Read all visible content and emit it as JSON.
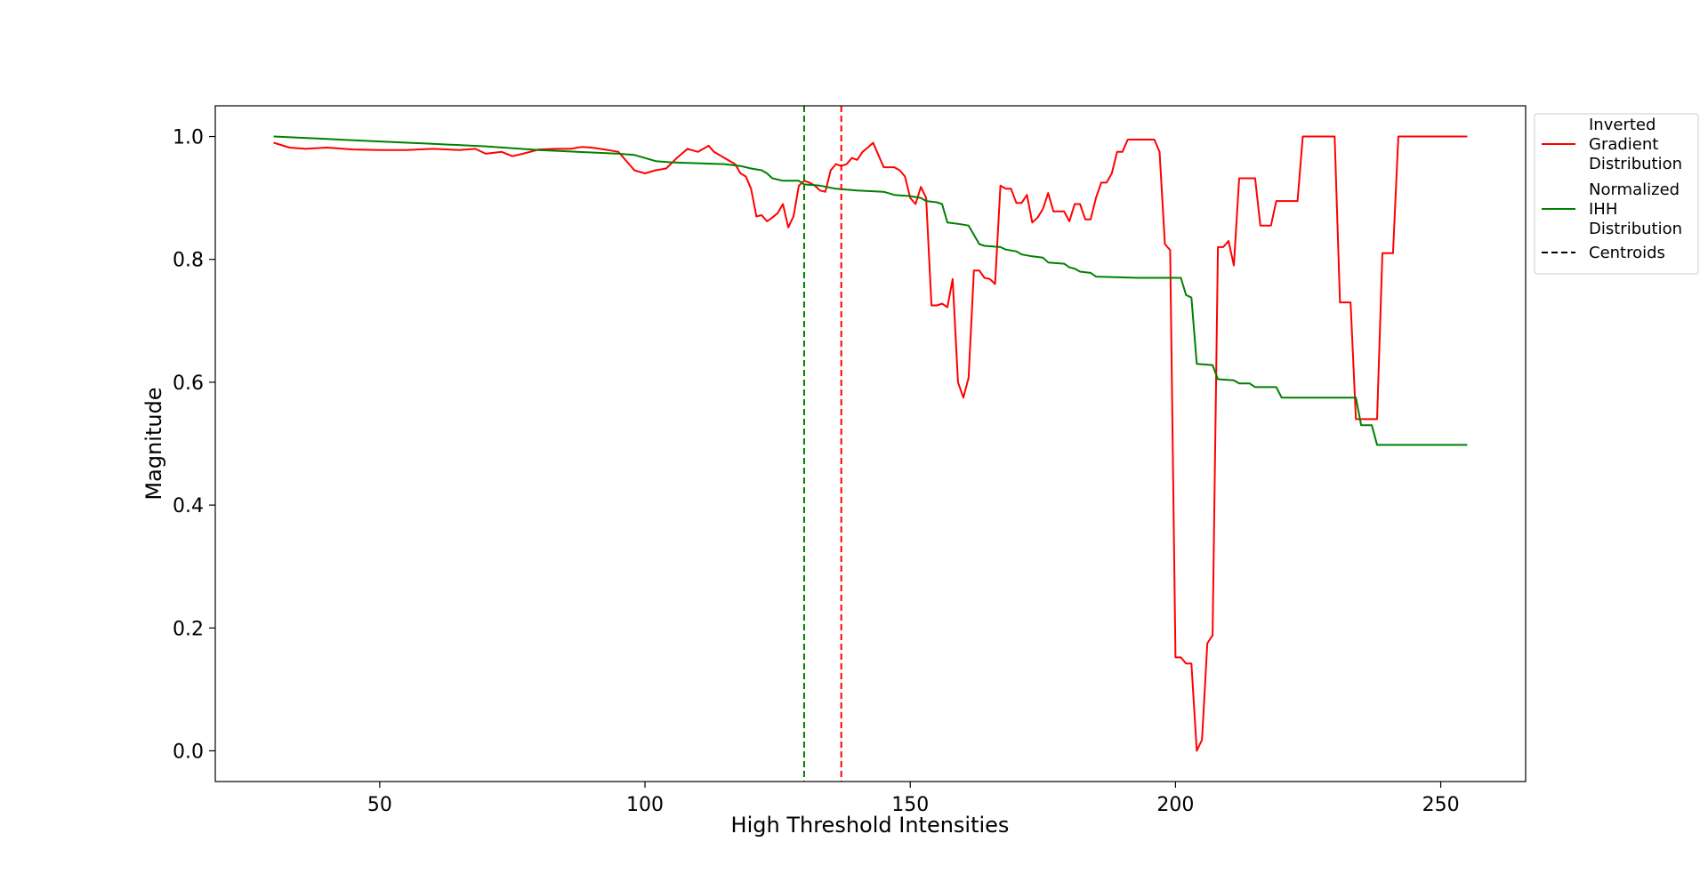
{
  "chart_data": {
    "type": "line",
    "title": "",
    "xlabel": "High Threshold Intensities",
    "ylabel": "Magnitude",
    "xlim": [
      19,
      266
    ],
    "ylim": [
      -0.05,
      1.05
    ],
    "x_ticks": [
      50,
      100,
      150,
      200,
      250
    ],
    "y_ticks": [
      0.0,
      0.2,
      0.4,
      0.6,
      0.8,
      1.0
    ],
    "x_tick_labels": [
      "50",
      "100",
      "150",
      "200",
      "250"
    ],
    "y_tick_labels": [
      "0.0",
      "0.2",
      "0.4",
      "0.6",
      "0.8",
      "1.0"
    ],
    "grid": false,
    "legend_position": "outside-top-right",
    "legend_entries": [
      {
        "lines": [
          "Inverted",
          "Gradient",
          "Distribution"
        ],
        "color": "#ff0000",
        "style": "solid"
      },
      {
        "lines": [
          "Normalized",
          "IHH",
          "Distribution"
        ],
        "color": "#008000",
        "style": "solid"
      },
      {
        "lines": [
          "Centroids"
        ],
        "color": "#000000",
        "style": "dashed"
      }
    ],
    "series": [
      {
        "name": "Inverted Gradient Distribution",
        "color": "#ff0000",
        "points": [
          [
            30,
            0.99
          ],
          [
            33,
            0.982
          ],
          [
            36,
            0.98
          ],
          [
            40,
            0.982
          ],
          [
            45,
            0.979
          ],
          [
            50,
            0.978
          ],
          [
            55,
            0.978
          ],
          [
            60,
            0.98
          ],
          [
            65,
            0.978
          ],
          [
            68,
            0.98
          ],
          [
            70,
            0.972
          ],
          [
            73,
            0.975
          ],
          [
            75,
            0.968
          ],
          [
            77,
            0.972
          ],
          [
            80,
            0.979
          ],
          [
            83,
            0.98
          ],
          [
            86,
            0.98
          ],
          [
            88,
            0.983
          ],
          [
            90,
            0.982
          ],
          [
            93,
            0.978
          ],
          [
            95,
            0.975
          ],
          [
            97,
            0.955
          ],
          [
            98,
            0.945
          ],
          [
            100,
            0.94
          ],
          [
            102,
            0.945
          ],
          [
            104,
            0.948
          ],
          [
            106,
            0.965
          ],
          [
            108,
            0.98
          ],
          [
            110,
            0.975
          ],
          [
            112,
            0.985
          ],
          [
            113,
            0.975
          ],
          [
            115,
            0.965
          ],
          [
            117,
            0.955
          ],
          [
            118,
            0.94
          ],
          [
            119,
            0.935
          ],
          [
            120,
            0.915
          ],
          [
            121,
            0.87
          ],
          [
            122,
            0.872
          ],
          [
            123,
            0.862
          ],
          [
            124,
            0.868
          ],
          [
            125,
            0.875
          ],
          [
            126,
            0.89
          ],
          [
            127,
            0.852
          ],
          [
            128,
            0.87
          ],
          [
            129,
            0.92
          ],
          [
            130,
            0.928
          ],
          [
            131,
            0.925
          ],
          [
            132,
            0.92
          ],
          [
            133,
            0.912
          ],
          [
            134,
            0.91
          ],
          [
            135,
            0.945
          ],
          [
            136,
            0.955
          ],
          [
            137,
            0.952
          ],
          [
            138,
            0.955
          ],
          [
            139,
            0.965
          ],
          [
            140,
            0.962
          ],
          [
            141,
            0.975
          ],
          [
            142,
            0.982
          ],
          [
            143,
            0.99
          ],
          [
            144,
            0.97
          ],
          [
            145,
            0.95
          ],
          [
            147,
            0.95
          ],
          [
            148,
            0.945
          ],
          [
            149,
            0.935
          ],
          [
            150,
            0.9
          ],
          [
            151,
            0.89
          ],
          [
            152,
            0.918
          ],
          [
            153,
            0.9
          ],
          [
            154,
            0.725
          ],
          [
            155,
            0.725
          ],
          [
            156,
            0.728
          ],
          [
            157,
            0.722
          ],
          [
            158,
            0.768
          ],
          [
            159,
            0.6
          ],
          [
            160,
            0.575
          ],
          [
            161,
            0.607
          ],
          [
            162,
            0.782
          ],
          [
            163,
            0.782
          ],
          [
            164,
            0.77
          ],
          [
            165,
            0.768
          ],
          [
            166,
            0.76
          ],
          [
            167,
            0.92
          ],
          [
            168,
            0.915
          ],
          [
            169,
            0.915
          ],
          [
            170,
            0.892
          ],
          [
            171,
            0.892
          ],
          [
            172,
            0.905
          ],
          [
            173,
            0.86
          ],
          [
            174,
            0.868
          ],
          [
            175,
            0.882
          ],
          [
            176,
            0.908
          ],
          [
            177,
            0.878
          ],
          [
            178,
            0.878
          ],
          [
            179,
            0.878
          ],
          [
            180,
            0.862
          ],
          [
            181,
            0.89
          ],
          [
            182,
            0.89
          ],
          [
            183,
            0.865
          ],
          [
            184,
            0.865
          ],
          [
            185,
            0.9
          ],
          [
            186,
            0.925
          ],
          [
            187,
            0.925
          ],
          [
            188,
            0.94
          ],
          [
            189,
            0.975
          ],
          [
            190,
            0.975
          ],
          [
            191,
            0.995
          ],
          [
            196,
            0.995
          ],
          [
            197,
            0.975
          ],
          [
            198,
            0.825
          ],
          [
            199,
            0.815
          ],
          [
            200,
            0.152
          ],
          [
            201,
            0.152
          ],
          [
            202,
            0.142
          ],
          [
            203,
            0.142
          ],
          [
            204,
            0.0
          ],
          [
            205,
            0.018
          ],
          [
            206,
            0.175
          ],
          [
            207,
            0.188
          ],
          [
            208,
            0.82
          ],
          [
            209,
            0.82
          ],
          [
            210,
            0.83
          ],
          [
            211,
            0.79
          ],
          [
            212,
            0.932
          ],
          [
            215,
            0.932
          ],
          [
            216,
            0.855
          ],
          [
            218,
            0.855
          ],
          [
            219,
            0.895
          ],
          [
            223,
            0.895
          ],
          [
            224,
            1.0
          ],
          [
            230,
            1.0
          ],
          [
            231,
            0.73
          ],
          [
            233,
            0.73
          ],
          [
            234,
            0.54
          ],
          [
            238,
            0.54
          ],
          [
            239,
            0.81
          ],
          [
            241,
            0.81
          ],
          [
            242,
            1.0
          ],
          [
            255,
            1.0
          ]
        ]
      },
      {
        "name": "Normalized IHH Distribution",
        "color": "#008000",
        "points": [
          [
            30,
            1.0
          ],
          [
            40,
            0.996
          ],
          [
            50,
            0.992
          ],
          [
            60,
            0.988
          ],
          [
            70,
            0.984
          ],
          [
            80,
            0.978
          ],
          [
            90,
            0.974
          ],
          [
            95,
            0.972
          ],
          [
            98,
            0.97
          ],
          [
            100,
            0.965
          ],
          [
            102,
            0.96
          ],
          [
            105,
            0.958
          ],
          [
            115,
            0.955
          ],
          [
            118,
            0.952
          ],
          [
            120,
            0.948
          ],
          [
            122,
            0.945
          ],
          [
            123,
            0.94
          ],
          [
            124,
            0.932
          ],
          [
            126,
            0.928
          ],
          [
            129,
            0.928
          ],
          [
            130,
            0.922
          ],
          [
            133,
            0.92
          ],
          [
            136,
            0.915
          ],
          [
            140,
            0.912
          ],
          [
            145,
            0.91
          ],
          [
            147,
            0.905
          ],
          [
            150,
            0.903
          ],
          [
            152,
            0.9
          ],
          [
            153,
            0.895
          ],
          [
            155,
            0.893
          ],
          [
            156,
            0.89
          ],
          [
            157,
            0.86
          ],
          [
            159,
            0.858
          ],
          [
            161,
            0.855
          ],
          [
            162,
            0.84
          ],
          [
            163,
            0.825
          ],
          [
            164,
            0.822
          ],
          [
            167,
            0.82
          ],
          [
            168,
            0.816
          ],
          [
            170,
            0.813
          ],
          [
            171,
            0.808
          ],
          [
            173,
            0.805
          ],
          [
            175,
            0.803
          ],
          [
            176,
            0.795
          ],
          [
            179,
            0.793
          ],
          [
            180,
            0.787
          ],
          [
            181,
            0.785
          ],
          [
            182,
            0.78
          ],
          [
            184,
            0.778
          ],
          [
            185,
            0.772
          ],
          [
            193,
            0.77
          ],
          [
            201,
            0.77
          ],
          [
            202,
            0.742
          ],
          [
            203,
            0.738
          ],
          [
            204,
            0.63
          ],
          [
            207,
            0.628
          ],
          [
            208,
            0.605
          ],
          [
            211,
            0.603
          ],
          [
            212,
            0.598
          ],
          [
            214,
            0.598
          ],
          [
            215,
            0.592
          ],
          [
            219,
            0.592
          ],
          [
            220,
            0.575
          ],
          [
            234,
            0.575
          ],
          [
            235,
            0.53
          ],
          [
            237,
            0.53
          ],
          [
            238,
            0.498
          ],
          [
            255,
            0.498
          ]
        ]
      }
    ],
    "centroids": [
      {
        "x": 130,
        "color": "#008000",
        "style": "dashed"
      },
      {
        "x": 137,
        "color": "#ff0000",
        "style": "dashed"
      }
    ]
  }
}
